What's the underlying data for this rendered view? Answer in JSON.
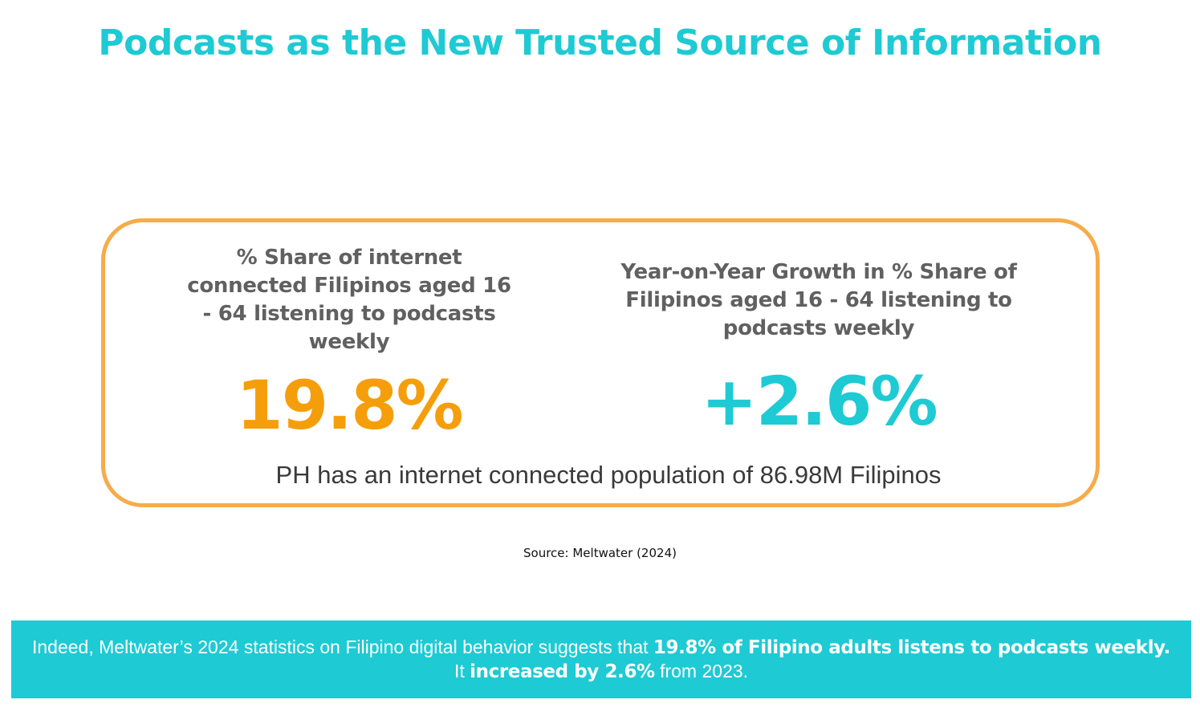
{
  "title": "Podcasts as the New Trusted Source of Information",
  "stats": {
    "left": {
      "label": "% Share of internet connected Filipinos aged 16 - 64 listening to podcasts weekly",
      "value": "19.8%"
    },
    "right": {
      "label": "Year-on-Year Growth in % Share of Filipinos aged 16 - 64 listening to podcasts weekly",
      "value": "+2.6%"
    },
    "population_note": "PH has an internet connected population of 86.98M Filipinos"
  },
  "source": "Source: Meltwater (2024)",
  "banner": {
    "part1": "Indeed, Meltwater’s 2024 statistics on Filipino digital behavior suggests that ",
    "bold1": "19.8% of Filipino adults listens to podcasts weekly.",
    "part2": " It ",
    "bold2": "increased by 2.6%",
    "part3": " from 2023."
  },
  "colors": {
    "accent_teal": "#1ecad3",
    "accent_orange": "#f59e0b",
    "card_border": "#f5ac4b",
    "label_gray": "#606060"
  }
}
